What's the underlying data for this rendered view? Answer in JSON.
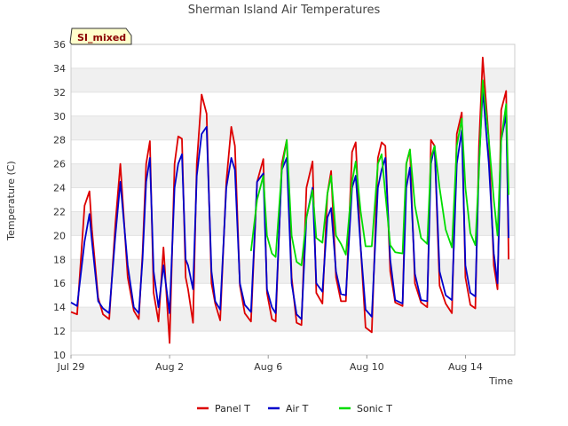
{
  "chart_data": {
    "type": "line",
    "title": "Sherman Island Air Temperatures",
    "xlabel": "Time",
    "ylabel": "Temperature (C)",
    "badge": "SI_mixed",
    "x_ticks": [
      "Jul 29",
      "Aug 2",
      "Aug 6",
      "Aug 10",
      "Aug 14"
    ],
    "x_tick_days": [
      0,
      4,
      8,
      12,
      16
    ],
    "xlim_days": [
      0,
      18.0
    ],
    "ylim": [
      10,
      36
    ],
    "y_ticks": [
      10,
      12,
      14,
      16,
      18,
      20,
      22,
      24,
      26,
      28,
      30,
      32,
      34,
      36
    ],
    "grid": "horizontal bands",
    "legend_position": "bottom",
    "series": [
      {
        "name": "Panel T",
        "color": "#dd0000",
        "x": [
          0.0,
          0.25,
          0.55,
          0.75,
          0.85,
          1.1,
          1.3,
          1.55,
          1.8,
          2.0,
          2.3,
          2.55,
          2.75,
          2.9,
          3.05,
          3.2,
          3.35,
          3.55,
          3.75,
          4.0,
          4.2,
          4.35,
          4.5,
          4.65,
          4.75,
          4.95,
          5.1,
          5.3,
          5.5,
          5.7,
          5.85,
          6.05,
          6.3,
          6.5,
          6.65,
          6.85,
          7.05,
          7.3,
          7.55,
          7.8,
          7.95,
          8.15,
          8.3,
          8.55,
          8.75,
          8.95,
          9.15,
          9.35,
          9.55,
          9.8,
          9.95,
          10.2,
          10.4,
          10.55,
          10.75,
          10.95,
          11.15,
          11.4,
          11.55,
          11.75,
          11.95,
          12.2,
          12.45,
          12.6,
          12.75,
          12.95,
          13.15,
          13.45,
          13.6,
          13.75,
          13.95,
          14.2,
          14.45,
          14.6,
          14.75,
          14.95,
          15.2,
          15.45,
          15.65,
          15.85,
          16.0,
          16.2,
          16.4,
          16.55,
          16.7,
          16.95,
          17.15,
          17.3,
          17.45,
          17.65,
          17.75
        ],
        "y": [
          13.6,
          13.4,
          22.5,
          23.7,
          20.5,
          14.8,
          13.4,
          13.0,
          21.0,
          26.0,
          16.5,
          13.7,
          13.0,
          18.5,
          26.0,
          27.9,
          15.2,
          12.8,
          19.0,
          11.0,
          26.0,
          28.3,
          28.1,
          16.5,
          15.5,
          12.7,
          26.0,
          31.8,
          30.2,
          16.0,
          14.3,
          12.9,
          24.5,
          29.1,
          27.5,
          15.8,
          13.5,
          12.8,
          24.5,
          26.4,
          15.2,
          13.0,
          12.8,
          26.0,
          28.0,
          16.5,
          12.7,
          12.5,
          24.0,
          26.2,
          15.2,
          14.3,
          23.5,
          25.4,
          16.5,
          14.5,
          14.5,
          27.0,
          27.8,
          19.0,
          12.3,
          11.9,
          26.5,
          27.8,
          27.5,
          17.0,
          14.4,
          14.1,
          26.0,
          27.2,
          16.0,
          14.4,
          14.0,
          28.0,
          27.5,
          15.8,
          14.3,
          13.5,
          28.5,
          30.3,
          16.5,
          14.2,
          13.9,
          27.5,
          34.9,
          28.0,
          17.5,
          15.5,
          30.5,
          32.1,
          18.0
        ]
      },
      {
        "name": "Air T",
        "color": "#0000cc",
        "x": [
          0.0,
          0.25,
          0.55,
          0.75,
          0.85,
          1.1,
          1.3,
          1.55,
          1.8,
          2.0,
          2.3,
          2.55,
          2.75,
          2.9,
          3.05,
          3.2,
          3.35,
          3.55,
          3.75,
          4.0,
          4.2,
          4.35,
          4.5,
          4.65,
          4.75,
          4.95,
          5.1,
          5.3,
          5.5,
          5.7,
          5.85,
          6.05,
          6.3,
          6.5,
          6.65,
          6.85,
          7.05,
          7.3,
          7.55,
          7.8,
          7.95,
          8.15,
          8.3,
          8.55,
          8.75,
          8.95,
          9.15,
          9.35,
          9.55,
          9.8,
          9.95,
          10.2,
          10.4,
          10.55,
          10.75,
          10.95,
          11.15,
          11.4,
          11.55,
          11.75,
          11.95,
          12.2,
          12.45,
          12.6,
          12.75,
          12.95,
          13.15,
          13.45,
          13.6,
          13.75,
          13.95,
          14.2,
          14.45,
          14.6,
          14.75,
          14.95,
          15.2,
          15.45,
          15.65,
          15.85,
          16.0,
          16.2,
          16.4,
          16.55,
          16.7,
          16.95,
          17.15,
          17.3,
          17.45,
          17.65,
          17.75
        ],
        "y": [
          14.4,
          14.1,
          19.5,
          21.8,
          19.5,
          14.5,
          13.9,
          13.5,
          20.0,
          24.5,
          17.5,
          14.0,
          13.5,
          18.0,
          24.5,
          26.5,
          17.0,
          14.0,
          17.5,
          13.5,
          24.0,
          26.0,
          26.8,
          18.0,
          17.5,
          15.5,
          25.0,
          28.5,
          29.1,
          17.0,
          14.5,
          13.8,
          24.0,
          26.5,
          25.5,
          16.0,
          14.2,
          13.6,
          24.5,
          25.2,
          15.5,
          14.0,
          13.5,
          25.5,
          26.5,
          16.0,
          13.4,
          13.0,
          21.5,
          24.0,
          16.0,
          15.3,
          21.5,
          22.3,
          17.0,
          15.1,
          15.0,
          24.0,
          25.0,
          19.0,
          13.8,
          13.2,
          24.0,
          25.5,
          26.5,
          18.0,
          14.6,
          14.3,
          24.0,
          25.7,
          16.8,
          14.6,
          14.5,
          26.0,
          27.5,
          17.0,
          15.0,
          14.6,
          26.0,
          28.8,
          17.5,
          15.2,
          14.9,
          26.0,
          32.2,
          26.0,
          18.5,
          16.0,
          28.0,
          30.1,
          19.8
        ]
      },
      {
        "name": "Sonic T",
        "color": "#00dd00",
        "x": [
          7.3,
          7.55,
          7.8,
          7.95,
          8.15,
          8.3,
          8.55,
          8.75,
          8.95,
          9.15,
          9.35,
          9.55,
          9.8,
          9.95,
          10.2,
          10.4,
          10.55,
          10.75,
          10.95,
          11.15,
          11.4,
          11.55,
          11.75,
          11.95,
          12.2,
          12.45,
          12.6,
          12.75,
          12.95,
          13.15,
          13.45,
          13.6,
          13.75,
          13.95,
          14.2,
          14.45,
          14.6,
          14.75,
          14.95,
          15.2,
          15.45,
          15.65,
          15.85,
          16.0,
          16.2,
          16.4,
          16.55,
          16.7,
          16.95,
          17.15,
          17.3,
          17.45,
          17.65,
          17.75
        ],
        "y": [
          18.7,
          23.0,
          25.0,
          20.0,
          18.5,
          18.2,
          25.5,
          28.0,
          20.0,
          17.8,
          17.5,
          21.5,
          23.8,
          19.8,
          19.4,
          23.5,
          25.0,
          20.0,
          19.3,
          18.4,
          24.5,
          26.2,
          22.0,
          19.1,
          19.1,
          26.0,
          26.8,
          23.5,
          19.2,
          18.6,
          18.5,
          26.0,
          27.2,
          22.5,
          19.8,
          19.3,
          26.5,
          27.5,
          24.0,
          20.5,
          19.0,
          27.5,
          29.8,
          24.0,
          20.2,
          19.2,
          25.5,
          33.0,
          28.0,
          23.0,
          20.0,
          28.0,
          31.0,
          23.4
        ]
      }
    ]
  }
}
